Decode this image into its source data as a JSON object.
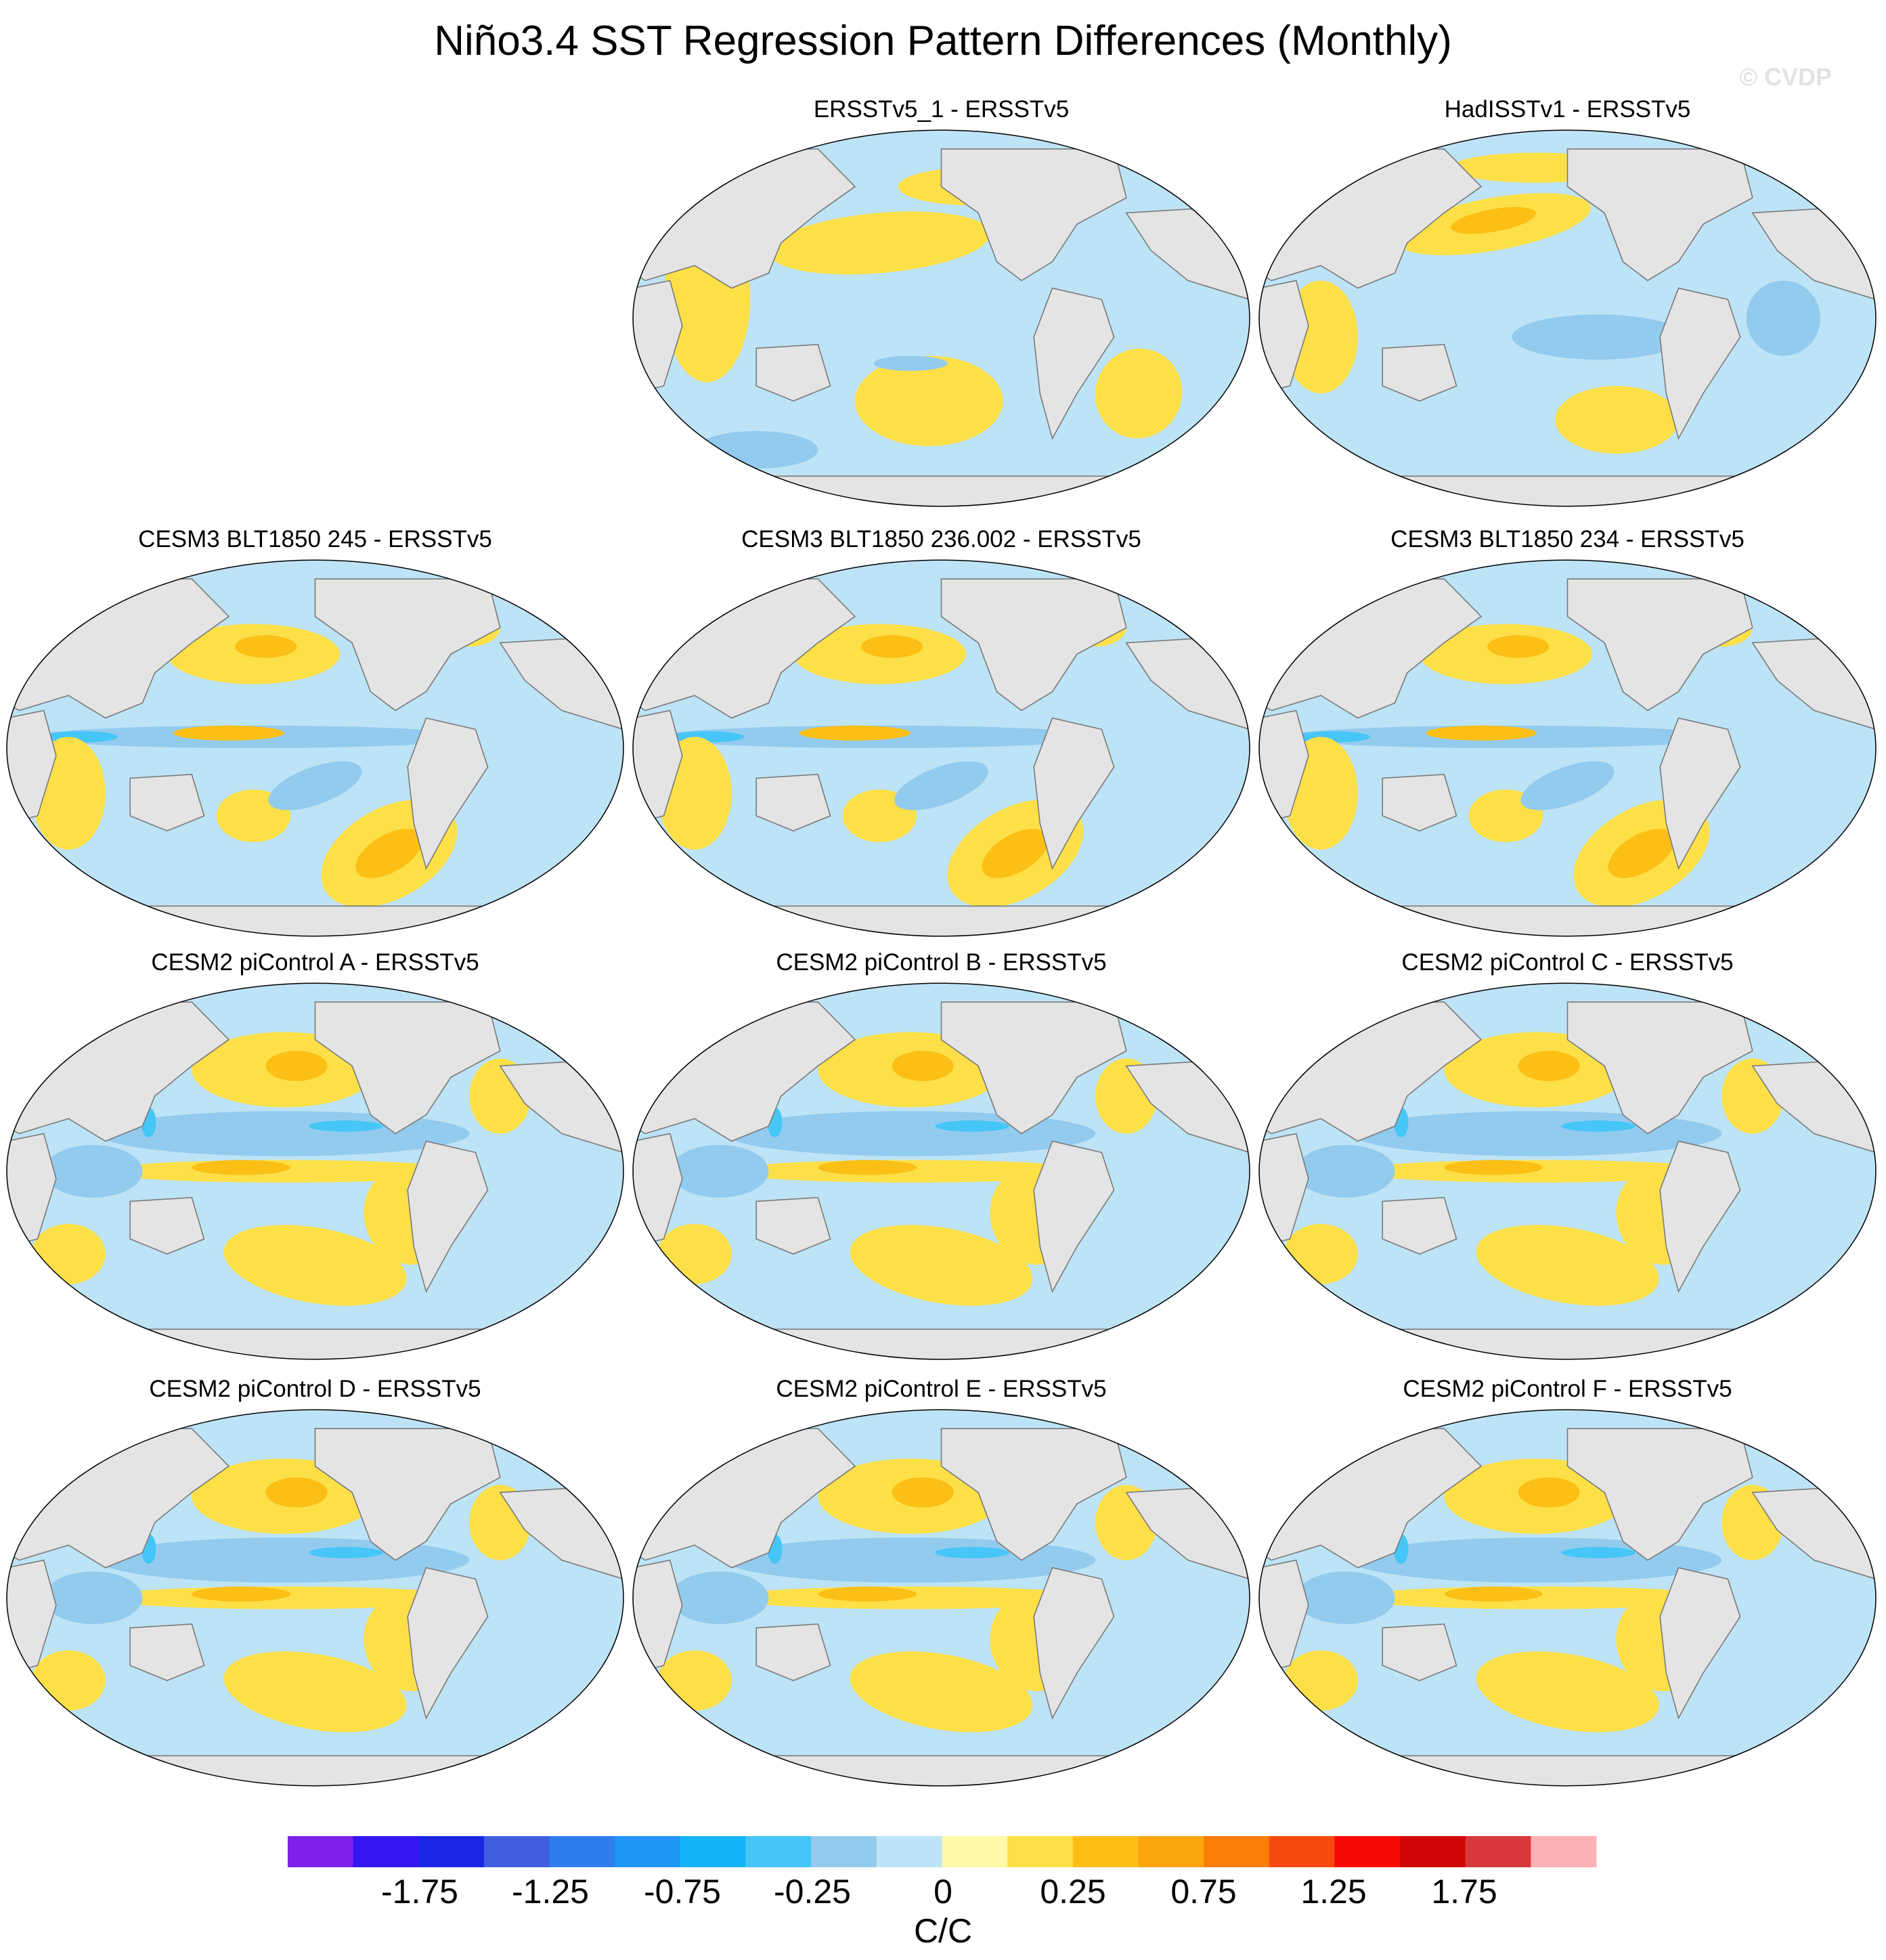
{
  "title": "Niño3.4 SST Regression Pattern Differences (Monthly)",
  "watermark": "© CVDP",
  "panels": [
    {
      "label": "ERSSTv5_1 - ERSSTv5",
      "style": "obs1"
    },
    {
      "label": "HadISSTv1 - ERSSTv5",
      "style": "obs2"
    },
    {
      "label": "CESM3 BLT1850 245 - ERSSTv5",
      "style": "cesm3"
    },
    {
      "label": "CESM3 BLT1850 236.002 - ERSSTv5",
      "style": "cesm3"
    },
    {
      "label": "CESM3 BLT1850 234 - ERSSTv5",
      "style": "cesm3"
    },
    {
      "label": "CESM2 piControl A - ERSSTv5",
      "style": "cesm2"
    },
    {
      "label": "CESM2 piControl B - ERSSTv5",
      "style": "cesm2"
    },
    {
      "label": "CESM2 piControl C - ERSSTv5",
      "style": "cesm2"
    },
    {
      "label": "CESM2 piControl D - ERSSTv5",
      "style": "cesm2"
    },
    {
      "label": "CESM2 piControl E - ERSSTv5",
      "style": "cesm2"
    },
    {
      "label": "CESM2 piControl F - ERSSTv5",
      "style": "cesm2"
    }
  ],
  "colorbar": {
    "units": "C/C",
    "tick_labels": [
      "-1.75",
      "-1.25",
      "-0.75",
      "-0.25",
      "0",
      "0.25",
      "0.75",
      "1.25",
      "1.75"
    ],
    "colors": [
      "#7f1fe8",
      "#3416f2",
      "#1a28e6",
      "#3f5fe0",
      "#2f7ef0",
      "#1f96f5",
      "#14b5f8",
      "#46c6f7",
      "#93cbee",
      "#bde3f6",
      "#fff8a6",
      "#fde047",
      "#fcbf16",
      "#fca40c",
      "#fb7d08",
      "#f84a0e",
      "#fa0a06",
      "#d10606",
      "#d8373b",
      "#fcb1b4"
    ]
  },
  "map_colors": {
    "land": "#e4e4e4",
    "neutral_neg": "#bde3f6",
    "neg": "#93cbee",
    "neg_strong": "#46c6f7",
    "neutral_pos": "#fff8a6",
    "pos": "#fde047",
    "pos_strong": "#fcbf16"
  }
}
